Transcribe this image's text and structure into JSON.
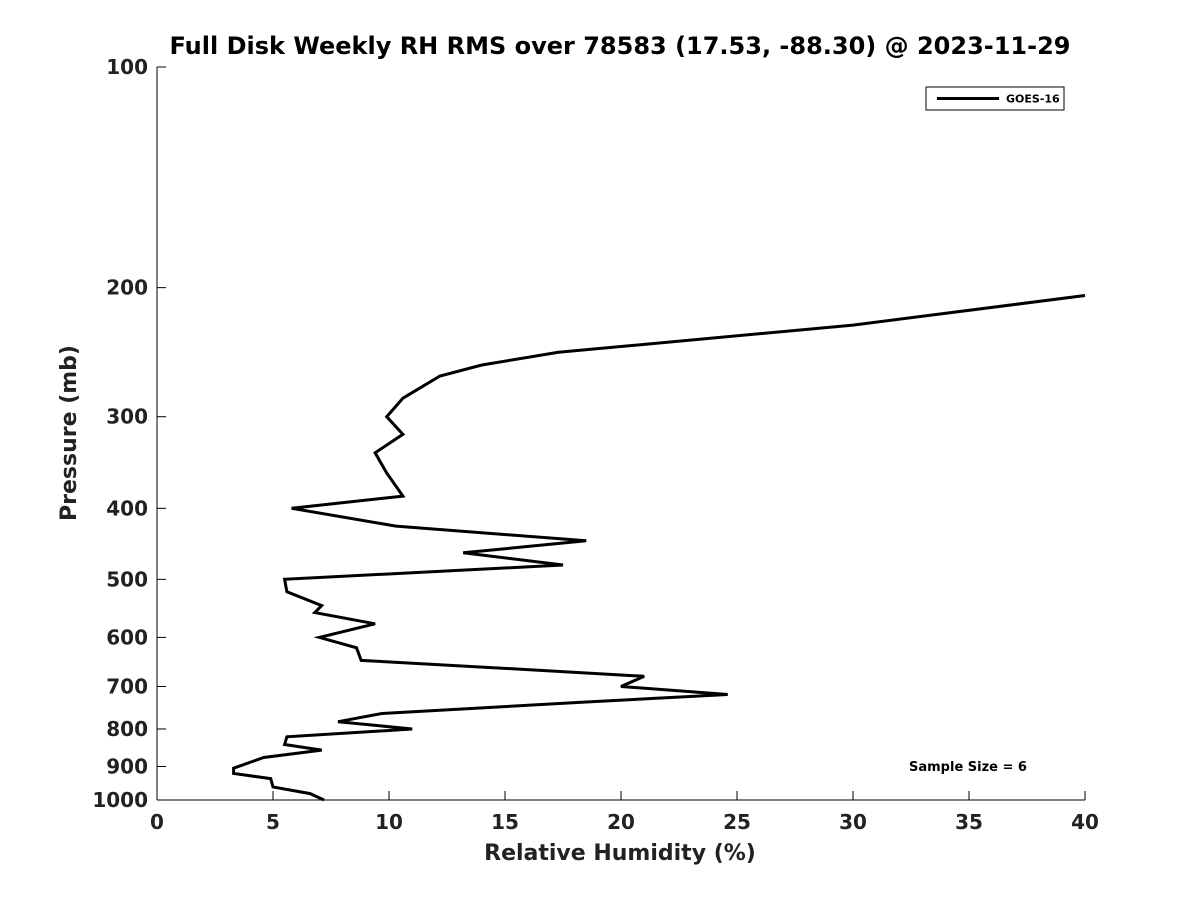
{
  "chart_data": {
    "type": "line",
    "title": "Full Disk Weekly RH RMS over 78583 (17.53, -88.30) @ 2023-11-29",
    "xlabel": "Relative Humidity (%)",
    "ylabel": "Pressure (mb)",
    "xlim": [
      0,
      40
    ],
    "ylim": [
      100,
      1000
    ],
    "y_scale": "log",
    "y_inverted": true,
    "x_ticks": [
      0,
      5,
      10,
      15,
      20,
      25,
      30,
      35,
      40
    ],
    "y_ticks": [
      100,
      200,
      300,
      400,
      500,
      600,
      700,
      800,
      900,
      1000
    ],
    "grid": false,
    "legend_position": "top-right",
    "annotation": "Sample Size = 6",
    "series": [
      {
        "name": "GOES-16",
        "color": "#000000",
        "points": [
          [
            40.0,
            205
          ],
          [
            30.0,
            225
          ],
          [
            17.3,
            245
          ],
          [
            14.0,
            255
          ],
          [
            12.2,
            264
          ],
          [
            10.6,
            283
          ],
          [
            9.9,
            300
          ],
          [
            10.6,
            317
          ],
          [
            9.4,
            336
          ],
          [
            9.9,
            358
          ],
          [
            10.6,
            385
          ],
          [
            5.8,
            400
          ],
          [
            10.3,
            423
          ],
          [
            18.5,
            443
          ],
          [
            13.2,
            460
          ],
          [
            17.5,
            478
          ],
          [
            5.5,
            500
          ],
          [
            5.6,
            520
          ],
          [
            7.1,
            543
          ],
          [
            6.8,
            555
          ],
          [
            9.4,
            575
          ],
          [
            7.0,
            600
          ],
          [
            8.6,
            620
          ],
          [
            8.8,
            645
          ],
          [
            14.5,
            660
          ],
          [
            21.0,
            678
          ],
          [
            20.0,
            700
          ],
          [
            24.6,
            718
          ],
          [
            18.5,
            735
          ],
          [
            9.7,
            762
          ],
          [
            7.8,
            782
          ],
          [
            11.0,
            800
          ],
          [
            5.6,
            820
          ],
          [
            5.5,
            840
          ],
          [
            7.1,
            855
          ],
          [
            4.6,
            875
          ],
          [
            3.3,
            905
          ],
          [
            3.3,
            920
          ],
          [
            4.9,
            935
          ],
          [
            5.0,
            960
          ],
          [
            6.6,
            980
          ],
          [
            7.2,
            1000
          ]
        ]
      }
    ]
  }
}
